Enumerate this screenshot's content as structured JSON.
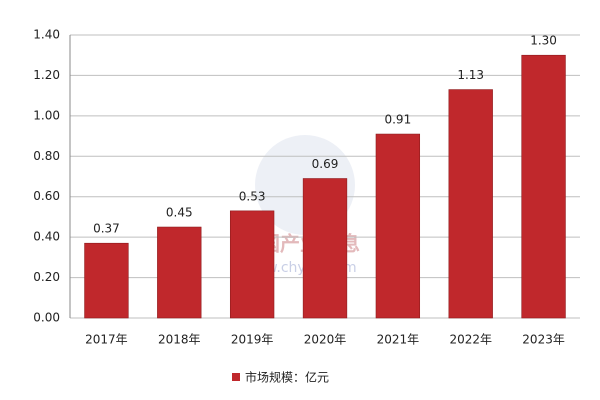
{
  "chart_data": {
    "type": "bar",
    "categories": [
      "2017年",
      "2018年",
      "2019年",
      "2020年",
      "2021年",
      "2022年",
      "2023年"
    ],
    "series": [
      {
        "name": "市场规模：亿元",
        "color": "#c0282c",
        "values": [
          0.37,
          0.45,
          0.53,
          0.69,
          0.91,
          1.13,
          1.3
        ],
        "value_labels": [
          "0.37",
          "0.45",
          "0.53",
          "0.69",
          "0.91",
          "1.13",
          "1.30"
        ]
      }
    ],
    "ylim": [
      0,
      1.4
    ],
    "yticks": [
      {
        "value": 0,
        "label": "0.00"
      },
      {
        "value": 0.2,
        "label": "0.20"
      },
      {
        "value": 0.4,
        "label": "0.40"
      },
      {
        "value": 0.6,
        "label": "0.60"
      },
      {
        "value": 0.8,
        "label": "0.80"
      },
      {
        "value": 1.0,
        "label": "1.00"
      },
      {
        "value": 1.2,
        "label": "1.20"
      },
      {
        "value": 1.4,
        "label": "1.40"
      }
    ],
    "grid": true,
    "legend": "bottom",
    "watermark": [
      "中国产业信息",
      "www.chyxx.com"
    ]
  }
}
